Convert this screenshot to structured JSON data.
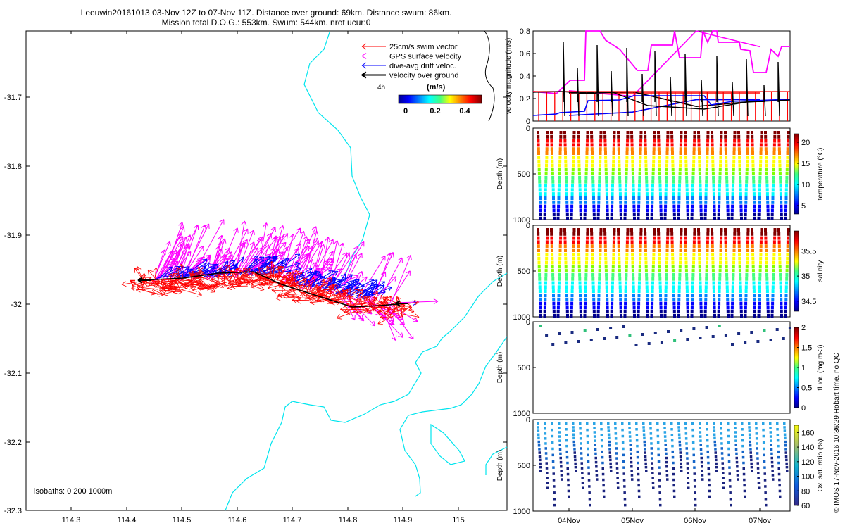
{
  "title": {
    "line1": "Leeuwin20161013 03-Nov 12Z to 07-Nov 11Z. Distance over ground: 69km. Distance swum: 86km.",
    "line2": "Mission total D.O.G.: 553km. Swum: 544km. nrot ucur:0"
  },
  "map": {
    "x_ticks": [
      "114.3",
      "114.4",
      "114.5",
      "114.6",
      "114.7",
      "114.8",
      "114.9",
      "115"
    ],
    "y_ticks": [
      "-31.7",
      "-31.8",
      "-31.9",
      "-32",
      "-32.1",
      "-32.2",
      "-32.3"
    ],
    "isobath_note": "isobaths: 0   200  1000m",
    "scale_note": "4h",
    "legend": [
      {
        "label": "25cm/s swim vector",
        "color": "#ff0000"
      },
      {
        "label": "GPS surface velocity",
        "color": "#ff00ff"
      },
      {
        "label": "dive-avg drift veloc.",
        "color": "#0000ff"
      },
      {
        "label": "velocity over ground",
        "color": "#000000"
      }
    ],
    "colorbar_label": "(m/s)",
    "colorbar_ticks": [
      "0",
      "0.2",
      "0.4"
    ],
    "isobath_color": "#00e5ee"
  },
  "chart_data": [
    {
      "type": "line",
      "panel": "velocity",
      "ylabel": "velocity magnitude (m/s)",
      "y_ticks": [
        "0",
        "0.2",
        "0.4",
        "0.6",
        "0.8"
      ],
      "ylim": [
        0,
        0.8
      ],
      "x_ticks": [
        "04Nov",
        "05Nov",
        "06Nov",
        "07Nov"
      ],
      "series": [
        {
          "color": "#ff0000",
          "values": [
            0.25,
            0.25,
            0.25,
            0.25
          ]
        },
        {
          "color": "#0000ff",
          "values": [
            0.05,
            0.08,
            0.19,
            0.19
          ]
        },
        {
          "color": "#ff00ff",
          "values": [
            0.27,
            0.22,
            0.8,
            0.66
          ]
        },
        {
          "color": "#000000",
          "values": [
            0.25,
            0.26,
            0.13,
            0.18
          ]
        }
      ]
    },
    {
      "type": "scatter",
      "panel": "temperature",
      "ylabel": "Depth (m)",
      "y_ticks": [
        "0",
        "500",
        "1000"
      ],
      "ylim": [
        0,
        1000
      ],
      "colorbar_label": "temperature (°C)",
      "colorbar_ticks": [
        "5",
        "10",
        "15",
        "20"
      ],
      "clim": [
        3,
        22
      ]
    },
    {
      "type": "scatter",
      "panel": "salinity",
      "ylabel": "Depth (m)",
      "y_ticks": [
        "0",
        "500",
        "1000"
      ],
      "ylim": [
        0,
        1000
      ],
      "colorbar_label": "salinity",
      "colorbar_ticks": [
        "34.5",
        "35",
        "35.5"
      ],
      "clim": [
        34.3,
        35.9
      ]
    },
    {
      "type": "scatter",
      "panel": "fluorescence",
      "ylabel": "Depth (m)",
      "y_ticks": [
        "0",
        "500",
        "1000"
      ],
      "ylim": [
        0,
        1000
      ],
      "colorbar_label": "fluor. (mg m-3)",
      "colorbar_ticks": [
        "0",
        "0.5",
        "1",
        "1.5",
        "2"
      ],
      "clim": [
        0,
        2
      ]
    },
    {
      "type": "scatter",
      "panel": "oxygen",
      "ylabel": "Depth (m)",
      "y_ticks": [
        "0",
        "500",
        "1000"
      ],
      "ylim": [
        0,
        1000
      ],
      "colorbar_label": "Ox. sat. ratio (%)",
      "colorbar_ticks": [
        "60",
        "80",
        "100",
        "120",
        "140",
        "160"
      ],
      "clim": [
        60,
        170
      ]
    }
  ],
  "footer_vertical": "© IMOS 17-Nov-2016 10:36:29 Hobart time. no QC"
}
